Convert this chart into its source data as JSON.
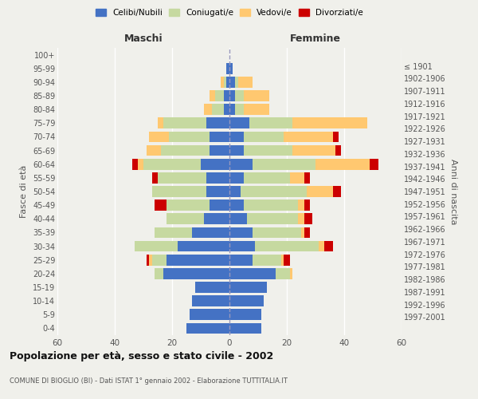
{
  "age_groups": [
    "0-4",
    "5-9",
    "10-14",
    "15-19",
    "20-24",
    "25-29",
    "30-34",
    "35-39",
    "40-44",
    "45-49",
    "50-54",
    "55-59",
    "60-64",
    "65-69",
    "70-74",
    "75-79",
    "80-84",
    "85-89",
    "90-94",
    "95-99",
    "100+"
  ],
  "birth_years": [
    "1997-2001",
    "1992-1996",
    "1987-1991",
    "1982-1986",
    "1977-1981",
    "1972-1976",
    "1967-1971",
    "1962-1966",
    "1957-1961",
    "1952-1956",
    "1947-1951",
    "1942-1946",
    "1937-1941",
    "1932-1936",
    "1927-1931",
    "1922-1926",
    "1917-1921",
    "1912-1916",
    "1907-1911",
    "1902-1906",
    "≤ 1901"
  ],
  "maschi": {
    "celibe": [
      15,
      14,
      13,
      12,
      23,
      22,
      18,
      13,
      9,
      7,
      8,
      8,
      10,
      7,
      7,
      8,
      2,
      2,
      1,
      1,
      0
    ],
    "coniugato": [
      0,
      0,
      0,
      0,
      3,
      5,
      15,
      13,
      13,
      15,
      19,
      17,
      20,
      17,
      14,
      15,
      4,
      3,
      1,
      0,
      0
    ],
    "vedovo": [
      0,
      0,
      0,
      0,
      0,
      1,
      0,
      0,
      0,
      0,
      0,
      0,
      2,
      5,
      7,
      2,
      3,
      2,
      1,
      0,
      0
    ],
    "divorziato": [
      0,
      0,
      0,
      0,
      0,
      1,
      0,
      0,
      0,
      4,
      0,
      2,
      2,
      0,
      0,
      0,
      0,
      0,
      0,
      0,
      0
    ]
  },
  "femmine": {
    "celibe": [
      11,
      11,
      12,
      13,
      16,
      8,
      9,
      8,
      6,
      5,
      4,
      5,
      8,
      5,
      5,
      7,
      2,
      2,
      2,
      1,
      0
    ],
    "coniugato": [
      0,
      0,
      0,
      0,
      5,
      10,
      22,
      17,
      18,
      19,
      23,
      16,
      22,
      17,
      14,
      15,
      3,
      3,
      1,
      0,
      0
    ],
    "vedovo": [
      0,
      0,
      0,
      0,
      1,
      1,
      2,
      1,
      2,
      2,
      9,
      5,
      19,
      15,
      17,
      26,
      9,
      9,
      5,
      0,
      0
    ],
    "divorziato": [
      0,
      0,
      0,
      0,
      0,
      2,
      3,
      2,
      3,
      2,
      3,
      2,
      3,
      2,
      2,
      0,
      0,
      0,
      0,
      0,
      0
    ]
  },
  "colors": {
    "celibe": "#4472c4",
    "coniugato": "#c6d9a0",
    "vedovo": "#ffc870",
    "divorziato": "#cc0000"
  },
  "legend_labels": [
    "Celibi/Nubili",
    "Coniugati/e",
    "Vedovi/e",
    "Divorziati/e"
  ],
  "title": "Popolazione per età, sesso e stato civile - 2002",
  "subtitle": "COMUNE DI BIOGLIO (BI) - Dati ISTAT 1° gennaio 2002 - Elaborazione TUTTITALIA.IT",
  "xlabel_left": "Maschi",
  "xlabel_right": "Femmine",
  "ylabel_left": "Fasce di età",
  "ylabel_right": "Anni di nascita",
  "xlim": 60,
  "background_color": "#f0f0eb"
}
